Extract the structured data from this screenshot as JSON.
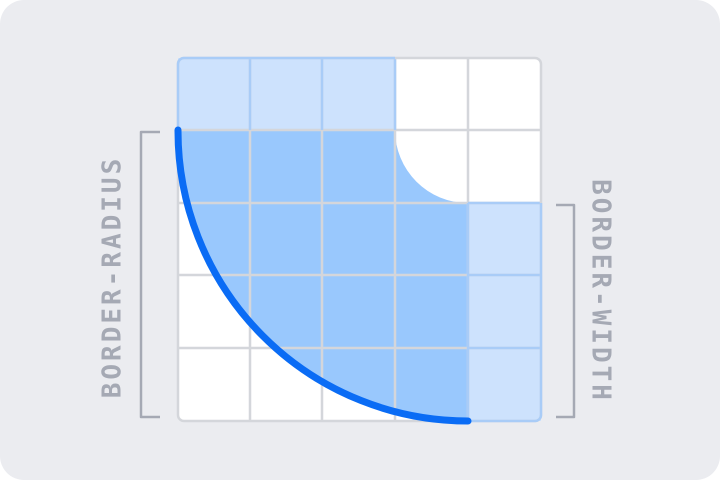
{
  "labels": {
    "left": "BORDER-RADIUS",
    "right": "BORDER-WIDTH"
  },
  "colors": {
    "panel": "#EBECF0",
    "grid_line": "#D4D6DB",
    "cell_fill": "#FFFFFF",
    "border_highlight_fill": "#CDE2FD",
    "border_highlight_stroke": "#A9CCF7",
    "shape_fill": "#99C8FD",
    "curve_stroke": "#0A6CF5",
    "bracket": "#A5A9B4",
    "label": "#A5A9B4"
  }
}
